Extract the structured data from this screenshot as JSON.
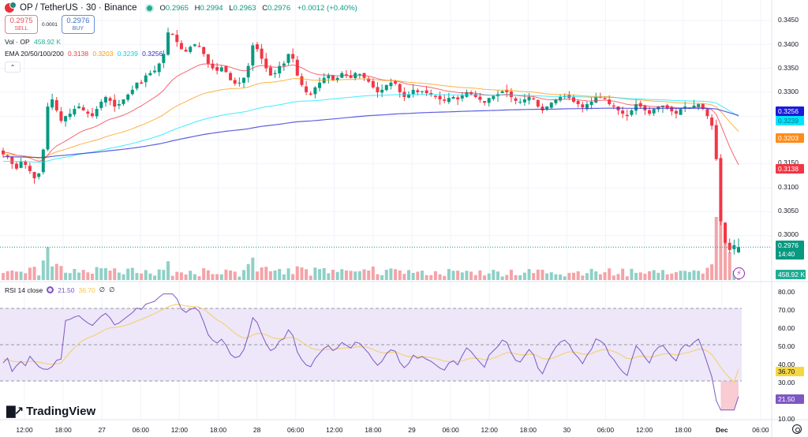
{
  "header": {
    "symbol": "OP",
    "title": "OP / TetherUS · 30 · Binance",
    "ohlc": {
      "o_label": "O",
      "o": "0.2965",
      "h_label": "H",
      "h": "0.2994",
      "l_label": "L",
      "l": "0.2963",
      "c_label": "C",
      "c": "0.2976",
      "change": "+0.0012 (+0.40%)"
    }
  },
  "trade": {
    "sell_price": "0.2975",
    "sell_label": "SELL",
    "spread": "0.0001",
    "buy_price": "0.2976",
    "buy_label": "BUY"
  },
  "indicators": {
    "volume": {
      "label": "Vol · OP",
      "value": "458.92 K"
    },
    "ema": {
      "label": "EMA 20/50/100/200",
      "v20": "0.3138",
      "v50": "0.3203",
      "v100": "0.3239",
      "v200": "0.3256"
    },
    "rsi": {
      "label": "RSI 14 close",
      "value": "21.50",
      "ma": "36.70",
      "extra1": "∅",
      "extra2": "∅"
    }
  },
  "colors": {
    "up": "#089981",
    "down": "#f23645",
    "vol_up": "#8fd0c6",
    "vol_down": "#f4a3a8",
    "ema20": "#f23645",
    "ema50": "#ff9800",
    "ema100": "#00e5ff",
    "ema200": "#2a2ad6",
    "rsi_line": "#7e57c2",
    "rsi_ma": "#f5d17a",
    "rsi_band": "#ede7f9"
  },
  "price_axis": {
    "ticks": [
      "0.3450",
      "0.3400",
      "0.3350",
      "0.3300",
      "0.3150",
      "0.3100",
      "0.3050",
      "0.3000"
    ],
    "tags": {
      "ema200": "0.3256",
      "ema100": "0.3239",
      "ema50": "0.3203",
      "ema20": "0.3138",
      "last_price": "0.2976",
      "countdown": "14:40",
      "volume": "458.92 K"
    }
  },
  "rsi_axis": {
    "ticks": [
      "80.00",
      "70.00",
      "60.00",
      "50.00",
      "40.00",
      "30.00",
      "10.00"
    ],
    "tags": {
      "ma": "36.70",
      "rsi": "21.50"
    }
  },
  "time_axis": {
    "labels": [
      "12:00",
      "18:00",
      "27",
      "06:00",
      "12:00",
      "18:00",
      "28",
      "06:00",
      "12:00",
      "18:00",
      "29",
      "06:00",
      "12:00",
      "18:00",
      "30",
      "06:00",
      "12:00",
      "18:00",
      "Dec",
      "06:00"
    ]
  },
  "branding": {
    "logo_text": "TradingView",
    "logo_mark": "TV"
  },
  "chart_data": {
    "type": "candlestick",
    "title": "OP / TetherUS · 30 · Binance",
    "interval": "30m",
    "x_labels": [
      "12:00",
      "18:00",
      "27",
      "06:00",
      "12:00",
      "18:00",
      "28",
      "06:00",
      "12:00",
      "18:00",
      "29",
      "06:00",
      "12:00",
      "18:00",
      "30",
      "06:00",
      "12:00",
      "18:00",
      "Dec",
      "06:00"
    ],
    "price_range": [
      0.295,
      0.346
    ],
    "last": {
      "open": 0.2965,
      "high": 0.2994,
      "low": 0.2963,
      "close": 0.2976,
      "change": 0.0012,
      "change_pct": 0.4
    },
    "close_path": [
      0.317,
      0.3165,
      0.315,
      0.314,
      0.3155,
      0.3148,
      0.3135,
      0.312,
      0.313,
      0.318,
      0.327,
      0.3285,
      0.3262,
      0.324,
      0.325,
      0.3255,
      0.3265,
      0.327,
      0.3262,
      0.3255,
      0.325,
      0.3265,
      0.328,
      0.329,
      0.3282,
      0.327,
      0.3275,
      0.3285,
      0.3295,
      0.3305,
      0.332,
      0.3318,
      0.3335,
      0.334,
      0.3345,
      0.336,
      0.338,
      0.3425,
      0.342,
      0.3405,
      0.339,
      0.3385,
      0.3395,
      0.34,
      0.3395,
      0.338,
      0.336,
      0.335,
      0.3345,
      0.3352,
      0.3342,
      0.3325,
      0.3318,
      0.332,
      0.333,
      0.3355,
      0.3398,
      0.339,
      0.337,
      0.335,
      0.3335,
      0.334,
      0.3355,
      0.336,
      0.338,
      0.337,
      0.3335,
      0.3315,
      0.33,
      0.3295,
      0.331,
      0.332,
      0.333,
      0.3335,
      0.3325,
      0.333,
      0.334,
      0.3335,
      0.333,
      0.334,
      0.3338,
      0.333,
      0.3322,
      0.331,
      0.33,
      0.3305,
      0.3315,
      0.332,
      0.3318,
      0.33,
      0.329,
      0.3295,
      0.3305,
      0.33,
      0.3302,
      0.3298,
      0.3295,
      0.329,
      0.3285,
      0.3282,
      0.3288,
      0.329,
      0.3285,
      0.3293,
      0.33,
      0.3296,
      0.329,
      0.3284,
      0.3278,
      0.3288,
      0.3292,
      0.3296,
      0.3302,
      0.33,
      0.329,
      0.3282,
      0.328,
      0.3285,
      0.329,
      0.3285,
      0.327,
      0.3262,
      0.327,
      0.3278,
      0.3285,
      0.329,
      0.3292,
      0.3288,
      0.328,
      0.3275,
      0.3268,
      0.3275,
      0.328,
      0.329,
      0.3288,
      0.3285,
      0.3275,
      0.327,
      0.3262,
      0.3255,
      0.325,
      0.3262,
      0.3275,
      0.327,
      0.3262,
      0.3255,
      0.3265,
      0.327,
      0.3272,
      0.3266,
      0.326,
      0.3255,
      0.3265,
      0.327,
      0.3268,
      0.3272,
      0.3275,
      0.3265,
      0.325,
      0.323,
      0.316,
      0.303,
      0.2985,
      0.297,
      0.298,
      0.2976
    ],
    "ema": {
      "EMA20": 0.3138,
      "EMA50": 0.3203,
      "EMA100": 0.3239,
      "EMA200": 0.3256
    },
    "volume": {
      "last": "458.92 K"
    },
    "rsi": {
      "period": 14,
      "source": "close",
      "value": 21.5,
      "ma_value": 36.7,
      "bands": [
        30,
        50,
        70
      ],
      "range": [
        10,
        80
      ]
    }
  }
}
